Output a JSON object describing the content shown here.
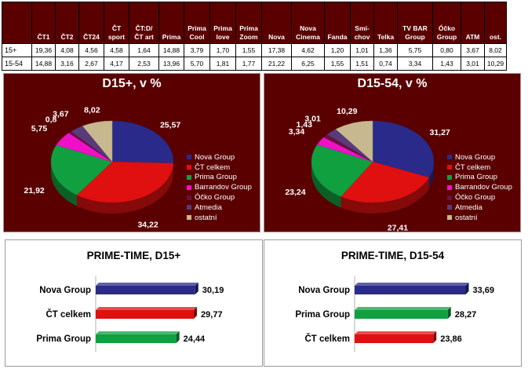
{
  "table": {
    "columns": [
      "ČT1",
      "ČT2",
      "ČT24",
      "ČT sport",
      "ČT:D/ ČT art",
      "Prima",
      "Prima Cool",
      "Prima love",
      "Prima Zoom",
      "Nova",
      "Nova Cinema",
      "Fanda",
      "Smí-chov",
      "Telka",
      "TV BAR Group",
      "Óčko Group",
      "ATM",
      "ost."
    ],
    "rows": [
      {
        "label": "15+",
        "values": [
          "19,36",
          "4,08",
          "4,56",
          "4,58",
          "1,64",
          "14,88",
          "3,79",
          "1,70",
          "1,55",
          "17,38",
          "4,62",
          "1,20",
          "1,01",
          "1,36",
          "5,75",
          "0,80",
          "3,67",
          "8,02"
        ]
      },
      {
        "label": "15-54",
        "values": [
          "14,88",
          "3,16",
          "2,67",
          "4,17",
          "2,53",
          "13,96",
          "5,70",
          "1,81",
          "1,77",
          "21,22",
          "6,25",
          "1,55",
          "1,51",
          "0,74",
          "3,34",
          "1,43",
          "3,01",
          "10,29"
        ]
      }
    ]
  },
  "chart_data": [
    {
      "type": "pie",
      "title": "D15+, v %",
      "categories": [
        "Nova Group",
        "ČT celkem",
        "Prima Group",
        "Barrandov Group",
        "Óčko Group",
        "Atmedia",
        "ostatní"
      ],
      "values": [
        25.57,
        34.22,
        21.92,
        5.75,
        0.8,
        3.67,
        8.02
      ],
      "value_labels": [
        "25,57",
        "34,22",
        "21,92",
        "5,75",
        "0,8",
        "3,67",
        "8,02"
      ],
      "colors": [
        "#2a2a8a",
        "#e01010",
        "#10a040",
        "#f010c8",
        "#6a1040",
        "#5a3a7a",
        "#c8b890"
      ],
      "legend_position": "right"
    },
    {
      "type": "pie",
      "title": "D15-54, v %",
      "categories": [
        "Nova Group",
        "ČT celkem",
        "Prima Group",
        "Barrandov Group",
        "Óčko Group",
        "Atmedia",
        "ostatní"
      ],
      "values": [
        31.27,
        27.41,
        23.24,
        3.34,
        1.43,
        3.01,
        10.29
      ],
      "value_labels": [
        "31,27",
        "27,41",
        "23,24",
        "3,34",
        "1,43",
        "3,01",
        "10,29"
      ],
      "colors": [
        "#2a2a8a",
        "#e01010",
        "#10a040",
        "#f010c8",
        "#6a1040",
        "#5a3a7a",
        "#c8b890"
      ],
      "legend_position": "right"
    },
    {
      "type": "bar",
      "orientation": "horizontal",
      "title": "PRIME-TIME, D15+",
      "categories": [
        "Nova Group",
        "ČT celkem",
        "Prima Group"
      ],
      "values": [
        30.19,
        29.77,
        24.44
      ],
      "value_labels": [
        "30,19",
        "29,77",
        "24,44"
      ],
      "colors": [
        "#2a2a8a",
        "#e01010",
        "#10a040"
      ],
      "xlim": [
        0,
        40
      ]
    },
    {
      "type": "bar",
      "orientation": "horizontal",
      "title": "PRIME-TIME, D15-54",
      "categories": [
        "Nova Group",
        "Prima Group",
        "ČT celkem"
      ],
      "values": [
        33.69,
        28.27,
        23.86
      ],
      "value_labels": [
        "33,69",
        "28,27",
        "23,86"
      ],
      "colors": [
        "#2a2a8a",
        "#10a040",
        "#e01010"
      ],
      "xlim": [
        0,
        40
      ]
    }
  ]
}
